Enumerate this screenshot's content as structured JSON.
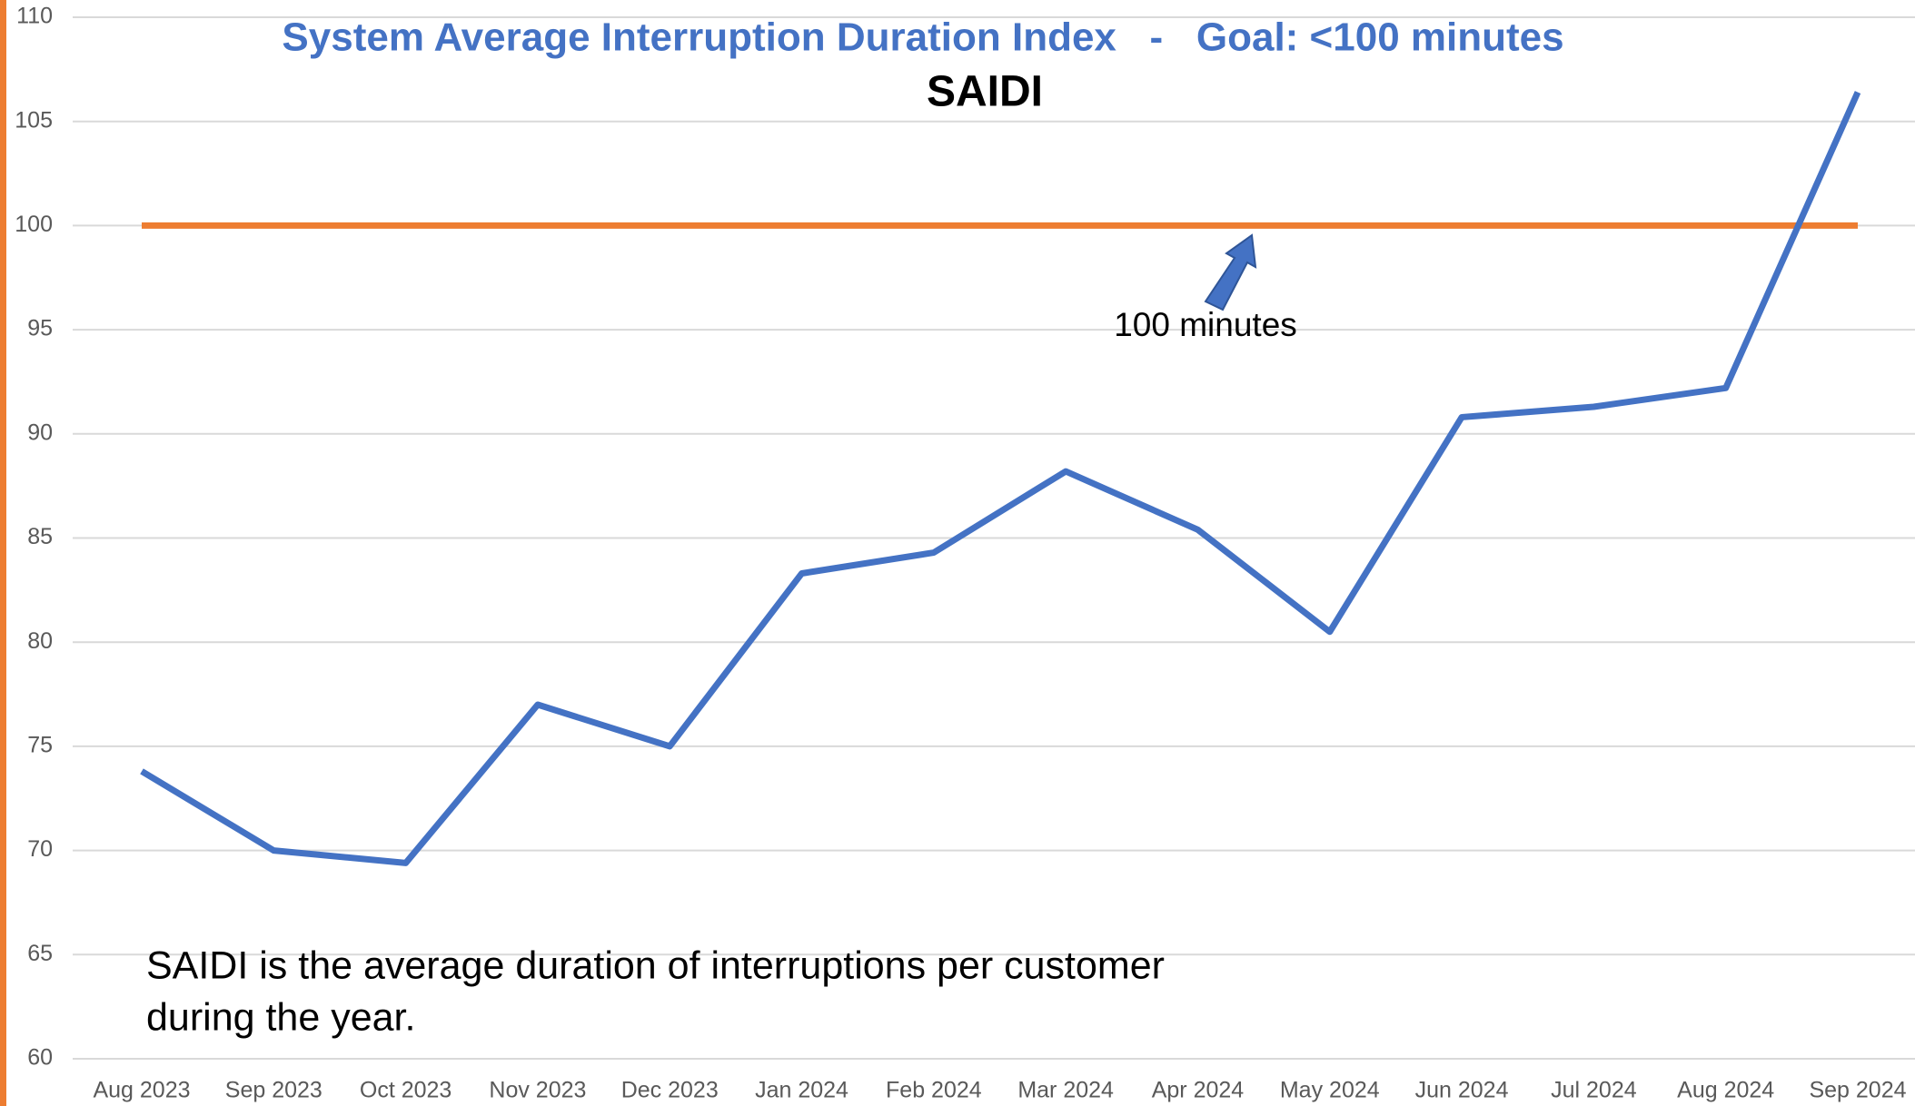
{
  "chart_data": {
    "type": "line",
    "title": "System Average Interruption Duration Index   -   Goal: <100 minutes",
    "subtitle": "SAIDI",
    "categories": [
      "Aug 2023",
      "Sep 2023",
      "Oct 2023",
      "Nov 2023",
      "Dec 2023",
      "Jan 2024",
      "Feb 2024",
      "Mar 2024",
      "Apr 2024",
      "May 2024",
      "Jun 2024",
      "Jul 2024",
      "Aug 2024",
      "Sep 2024"
    ],
    "values": [
      73.8,
      70.0,
      69.4,
      77.0,
      75.0,
      83.3,
      84.3,
      88.2,
      85.4,
      80.5,
      90.8,
      91.3,
      92.2,
      106.4
    ],
    "color": "#4472C4",
    "goal_line": {
      "value": 100,
      "color": "#ED7D31"
    },
    "annotation": "100 minutes",
    "note": [
      "SAIDI is the average duration of interruptions per customer",
      "during the year."
    ],
    "ylim": [
      60,
      110
    ],
    "yticks": [
      60,
      65,
      70,
      75,
      80,
      85,
      90,
      95,
      100,
      105,
      110
    ],
    "grid": true
  }
}
